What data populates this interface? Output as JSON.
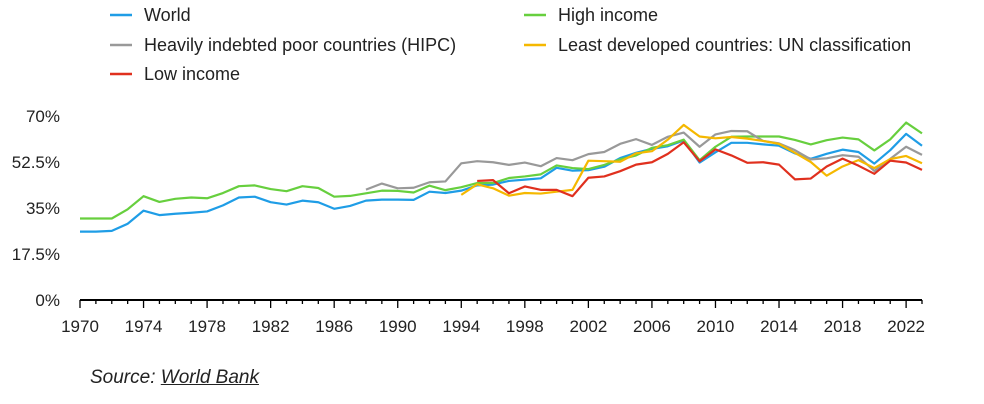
{
  "chart_data": {
    "type": "line",
    "title": "",
    "xlabel": "",
    "ylabel": "",
    "xlim": [
      1970,
      2023
    ],
    "ylim": [
      0,
      70
    ],
    "y_ticks": [
      0,
      17.5,
      35,
      52.5,
      70
    ],
    "y_tick_labels": [
      "0%",
      "17.5%",
      "35%",
      "52.5%",
      "70%"
    ],
    "x_ticks": [
      1970,
      1974,
      1978,
      1982,
      1986,
      1990,
      1994,
      1998,
      2002,
      2006,
      2010,
      2014,
      2018,
      2022
    ],
    "x_tick_labels": [
      "1970",
      "1974",
      "1978",
      "1982",
      "1986",
      "1990",
      "1994",
      "1998",
      "2002",
      "2006",
      "2010",
      "2014",
      "2018",
      "2022"
    ],
    "grid": false,
    "legend_position": "top",
    "series": [
      {
        "name": "World",
        "color": "#1f9de6",
        "start_year": 1970,
        "values": [
          26,
          26,
          26.3,
          29,
          34,
          32.3,
          32.8,
          33.2,
          33.7,
          36,
          39,
          39.3,
          37.2,
          36.3,
          37.8,
          37.2,
          34.7,
          35.8,
          37.8,
          38.2,
          38.2,
          38.1,
          41.2,
          40.7,
          41.6,
          43.6,
          43.9,
          45.3,
          45.8,
          46.3,
          50.3,
          49.2,
          49.4,
          50.7,
          54,
          56,
          57.5,
          58.5,
          60.7,
          52.3,
          56.2,
          59.8,
          59.8,
          59.2,
          58.7,
          55.8,
          53.7,
          55.6,
          57.2,
          56.3,
          51.9,
          57,
          63.2,
          58.7
        ]
      },
      {
        "name": "High income",
        "color": "#67cf3e",
        "start_year": 1970,
        "values": [
          31,
          31,
          31,
          34.5,
          39.5,
          37.3,
          38.5,
          39,
          38.7,
          40.7,
          43.3,
          43.6,
          42.2,
          41.4,
          43.3,
          42.6,
          39.3,
          39.6,
          40.6,
          41.6,
          41.5,
          40.9,
          43.5,
          41.8,
          42.9,
          44.5,
          44.5,
          46.4,
          47,
          47.8,
          51.2,
          50.2,
          49.8,
          51.4,
          53.5,
          55,
          57.9,
          58.9,
          61,
          53.2,
          58.3,
          62.1,
          62.2,
          62.2,
          62.2,
          60.9,
          59.2,
          60.8,
          61.8,
          61.1,
          56.9,
          61.1,
          67.5,
          63.4
        ]
      },
      {
        "name": "Heavily indebted poor countries (HIPC)",
        "color": "#999999",
        "start_year": 1988,
        "values": [
          42,
          44.3,
          42.5,
          42.7,
          44.8,
          45.1,
          52,
          52.8,
          52.4,
          51.4,
          52.3,
          50.9,
          54,
          53.2,
          55.5,
          56.3,
          59.4,
          61.2,
          59,
          62.1,
          63.7,
          58.3,
          63,
          64.3,
          64.2,
          60.5,
          59.6,
          57,
          53.5,
          53.9,
          55.1,
          54.5,
          49.1,
          53.7,
          58.3,
          55.2
        ]
      },
      {
        "name": "Least developed countries: UN classification",
        "color": "#f5b800",
        "start_year": 1994,
        "values": [
          40,
          44,
          42.5,
          39.7,
          40.7,
          40.5,
          41.2,
          41.9,
          53,
          52.8,
          52.6,
          55.8,
          56.6,
          61,
          66.6,
          62.2,
          61.5,
          62,
          61.4,
          60.5,
          59.4,
          56,
          52.5,
          47.3,
          50.8,
          53.2,
          50.2,
          53.6,
          54.8,
          52
        ]
      },
      {
        "name": "Low income",
        "color": "#e0301e",
        "start_year": 1995,
        "values": [
          45.3,
          45.6,
          40.6,
          43.2,
          41.9,
          41.9,
          39.5,
          46.5,
          47,
          49,
          51.5,
          52.4,
          55.6,
          60,
          52.8,
          57.3,
          55,
          52.2,
          52.4,
          51.5,
          45.9,
          46.2,
          50.8,
          53.8,
          51.1,
          48,
          53,
          52.3,
          49.5
        ]
      }
    ]
  },
  "source": {
    "prefix": "Source: ",
    "link_text": "World Bank"
  }
}
